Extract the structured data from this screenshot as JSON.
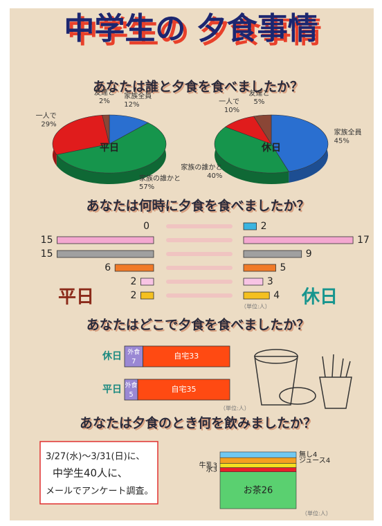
{
  "title": "中学生の 夕食事情",
  "chart_data": [
    {
      "type": "pie",
      "title": "あなたは誰と夕食を食べましたか？",
      "categories": [
        "家族全員",
        "家族の誰かと",
        "一人で",
        "友達と"
      ],
      "colors": [
        "#2a6fd0",
        "#16954c",
        "#e01c1c",
        "#8a4636"
      ],
      "series": [
        {
          "name": "平日",
          "values": [
            12,
            57,
            29,
            2
          ],
          "value_labels": [
            "12%",
            "57%",
            "29%",
            "2%"
          ]
        },
        {
          "name": "休日",
          "values": [
            45,
            40,
            10,
            5
          ],
          "value_labels": [
            "45%",
            "40%",
            "10%",
            "5%"
          ]
        }
      ]
    },
    {
      "type": "butterfly",
      "title": "あなたは何時に夕食を食べましたか？",
      "categories": [
        null,
        null,
        null,
        null,
        null,
        null
      ],
      "colors": [
        "#3ab4e0",
        "#f4a8d0",
        "#a0a0a0",
        "#f07a28",
        "#f8c4e4",
        "#f4c020"
      ],
      "series": [
        {
          "name": "平日",
          "color": "#8b2a1a",
          "values": [
            0,
            15,
            15,
            6,
            2,
            2
          ]
        },
        {
          "name": "休日",
          "color": "#17958e",
          "values": [
            2,
            17,
            9,
            5,
            3,
            4
          ]
        }
      ],
      "note": "（単位:人）"
    },
    {
      "type": "stackedbar",
      "orientation": "horizontal",
      "title": "あなたはどこで夕食を食べましたか？",
      "categories": [
        "休日",
        "平日"
      ],
      "series": [
        {
          "name": "外食",
          "color": "#9a88d4",
          "values": [
            7,
            5
          ]
        },
        {
          "name": "自宅",
          "color": "#ff4a12",
          "values": [
            33,
            35
          ]
        }
      ],
      "note": "（単位:人）"
    },
    {
      "type": "stackedbar",
      "orientation": "vertical",
      "title": "あなたは夕食のとき何を飲みましたか？",
      "categories": [
        null
      ],
      "series": [
        {
          "name": "お茶",
          "color": "#5ad070",
          "values": [
            26
          ]
        },
        {
          "name": "水",
          "color": "#e8202a",
          "values": [
            3
          ]
        },
        {
          "name": "牛乳",
          "color": "#f4e020",
          "values": [
            3
          ]
        },
        {
          "name": "ジュース",
          "color": "#f4a020",
          "values": [
            4
          ]
        },
        {
          "name": "無し",
          "color": "#70c8f0",
          "values": [
            4
          ]
        }
      ],
      "note": "（単位:人）"
    }
  ],
  "survey_note": [
    "3/27(水)～3/31(日)に、",
    "中学生40人に、",
    "メールでアンケート調査。"
  ]
}
